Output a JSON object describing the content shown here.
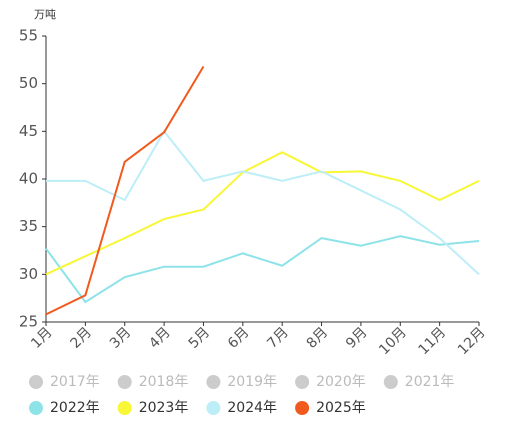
{
  "chart_data": {
    "type": "line",
    "unit_label": "万吨",
    "categories": [
      "1月",
      "2月",
      "3月",
      "4月",
      "5月",
      "6月",
      "7月",
      "8月",
      "9月",
      "10月",
      "11月",
      "12月"
    ],
    "ylim": [
      25,
      55
    ],
    "yticks": [
      25,
      30,
      35,
      40,
      45,
      50,
      55
    ],
    "grid": false,
    "series": [
      {
        "name": "2017年",
        "color": "#cccccc",
        "hidden": true,
        "values": [
          null,
          null,
          null,
          null,
          null,
          null,
          null,
          null,
          null,
          null,
          null,
          null
        ]
      },
      {
        "name": "2018年",
        "color": "#cccccc",
        "hidden": true,
        "values": [
          null,
          null,
          null,
          null,
          null,
          null,
          null,
          null,
          null,
          null,
          null,
          null
        ]
      },
      {
        "name": "2019年",
        "color": "#cccccc",
        "hidden": true,
        "values": [
          null,
          null,
          null,
          null,
          null,
          null,
          null,
          null,
          null,
          null,
          null,
          null
        ]
      },
      {
        "name": "2020年",
        "color": "#cccccc",
        "hidden": true,
        "values": [
          null,
          null,
          null,
          null,
          null,
          null,
          null,
          null,
          null,
          null,
          null,
          null
        ]
      },
      {
        "name": "2021年",
        "color": "#cccccc",
        "hidden": true,
        "values": [
          null,
          null,
          null,
          null,
          null,
          null,
          null,
          null,
          null,
          null,
          null,
          null
        ]
      },
      {
        "name": "2022年",
        "color": "#8ee3e8",
        "values": [
          32.7,
          27.1,
          29.7,
          30.8,
          30.8,
          32.2,
          30.9,
          33.8,
          33,
          34,
          33.1,
          33.5
        ]
      },
      {
        "name": "2023年",
        "color": "#f7f736",
        "values": [
          30,
          31.9,
          33.8,
          35.8,
          36.8,
          40.7,
          42.8,
          40.7,
          40.8,
          39.8,
          37.8,
          39.8
        ]
      },
      {
        "name": "2024年",
        "color": "#bdeef8",
        "values": [
          39.8,
          39.8,
          37.8,
          45,
          39.8,
          40.8,
          39.8,
          40.8,
          38.8,
          36.8,
          33.8,
          30
        ]
      },
      {
        "name": "2025年",
        "color": "#f05a1e",
        "values": [
          25.8,
          27.8,
          41.8,
          44.9,
          51.8,
          null,
          null,
          null,
          null,
          null,
          null,
          null
        ]
      }
    ]
  }
}
